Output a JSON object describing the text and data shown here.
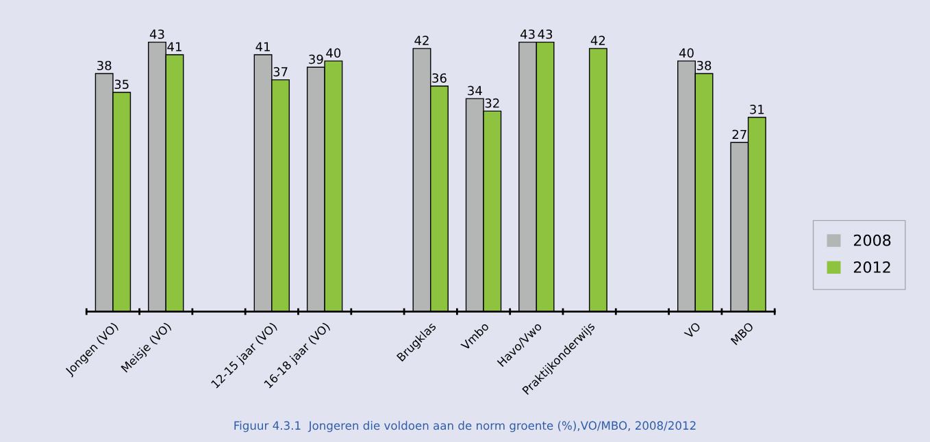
{
  "chart_data": {
    "type": "bar",
    "categories": [
      "Jongen (VO)",
      "Meisje (VO)",
      null,
      "12-15 jaar (VO)",
      "16-18 jaar (VO)",
      null,
      "Brugklas",
      "Vmbo",
      "Havo/Vwo",
      "Praktijkonderwijs",
      null,
      "VO",
      "MBO"
    ],
    "series": [
      {
        "name": "2008",
        "color": "#b4b6b5",
        "values": [
          38,
          43,
          null,
          41,
          39,
          null,
          42,
          34,
          43,
          null,
          null,
          40,
          27
        ]
      },
      {
        "name": "2012",
        "color": "#8dc33f",
        "values": [
          35,
          41,
          null,
          37,
          40,
          null,
          36,
          32,
          43,
          42,
          null,
          38,
          31
        ]
      }
    ],
    "data_labels": true,
    "tick_labels": "x",
    "grid": false,
    "legend": "right",
    "annotations": [
      "Figuur 4.3.1  Jongeren die voldoen aan de norm groente (%),VO/MBO, 2008/2012"
    ]
  }
}
